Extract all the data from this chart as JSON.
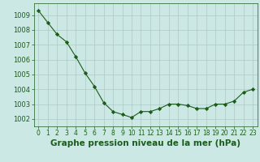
{
  "x": [
    0,
    1,
    2,
    3,
    4,
    5,
    6,
    7,
    8,
    9,
    10,
    11,
    12,
    13,
    14,
    15,
    16,
    17,
    18,
    19,
    20,
    21,
    22,
    23
  ],
  "y": [
    1009.3,
    1008.5,
    1007.7,
    1007.2,
    1006.2,
    1005.1,
    1004.2,
    1003.1,
    1002.5,
    1002.3,
    1002.1,
    1002.5,
    1002.5,
    1002.7,
    1003.0,
    1003.0,
    1002.9,
    1002.7,
    1002.7,
    1003.0,
    1003.0,
    1003.2,
    1003.8,
    1004.0
  ],
  "title": "Graphe pression niveau de la mer (hPa)",
  "ylim": [
    1001.5,
    1009.8
  ],
  "yticks": [
    1002,
    1003,
    1004,
    1005,
    1006,
    1007,
    1008,
    1009
  ],
  "xtick_labels": [
    "0",
    "1",
    "2",
    "3",
    "4",
    "5",
    "6",
    "7",
    "8",
    "9",
    "10",
    "11",
    "12",
    "13",
    "14",
    "15",
    "16",
    "17",
    "18",
    "19",
    "20",
    "21",
    "22",
    "23"
  ],
  "line_color": "#1a5c1a",
  "marker_color": "#1a5c1a",
  "bg_color": "#cce8e4",
  "grid_color": "#b0c8c4",
  "title_color": "#1a5c1a",
  "title_fontsize": 7.5,
  "tick_fontsize": 6.0,
  "xlabel_fontsize": 5.5
}
